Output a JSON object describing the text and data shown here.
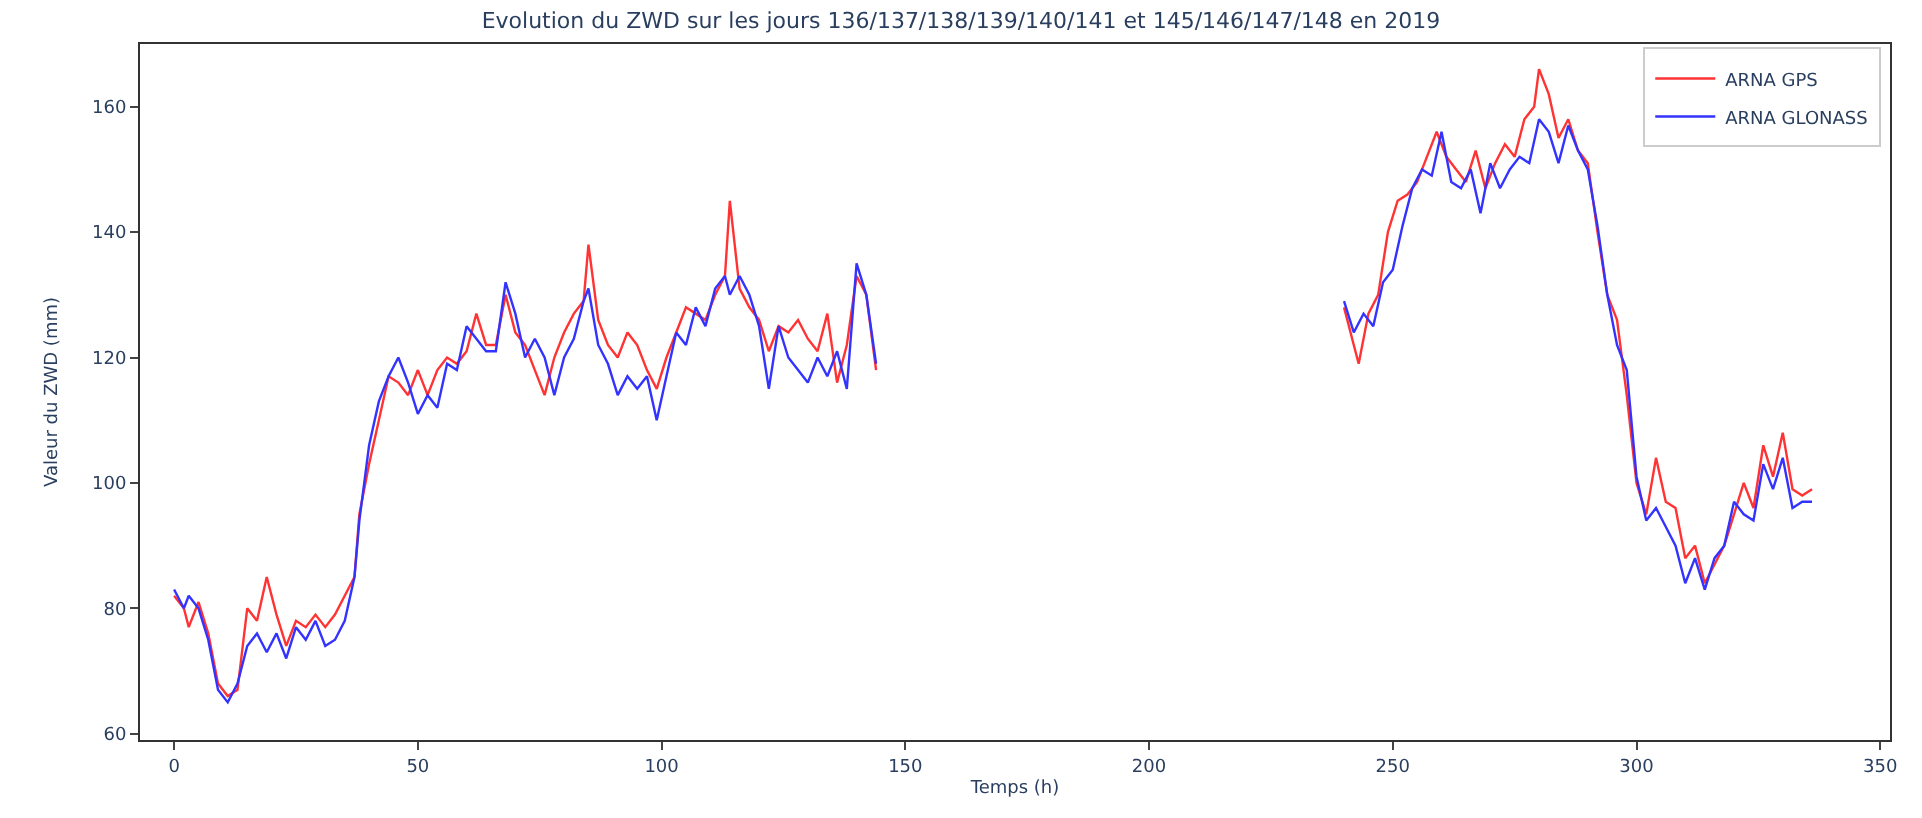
{
  "chart_data": {
    "type": "line",
    "title": "Evolution du ZWD sur les jours 136/137/138/139/140/141 et 145/146/147/148 en 2019",
    "xlabel": "Temps (h)",
    "ylabel": "Valeur du ZWD (mm)",
    "xlim": [
      -7,
      352
    ],
    "xticks": [
      0,
      50,
      100,
      150,
      200,
      250,
      300,
      350
    ],
    "ylim": [
      59,
      170
    ],
    "yticks": [
      60,
      80,
      100,
      120,
      140,
      160
    ],
    "legend": "top right",
    "marker": "none",
    "line_style": "solid",
    "series": [
      {
        "name": "ARNA GPS",
        "color": "#ff3333",
        "x": [
          0,
          2,
          3,
          5,
          7,
          9,
          11,
          13,
          15,
          17,
          19,
          21,
          23,
          25,
          27,
          29,
          31,
          33,
          35,
          37,
          38,
          40,
          42,
          44,
          46,
          48,
          50,
          52,
          54,
          56,
          58,
          60,
          62,
          64,
          66,
          68,
          70,
          72,
          74,
          76,
          78,
          80,
          82,
          84,
          85,
          87,
          89,
          91,
          93,
          95,
          97,
          99,
          101,
          103,
          105,
          107,
          109,
          111,
          113,
          114,
          116,
          118,
          120,
          122,
          124,
          126,
          128,
          130,
          132,
          134,
          136,
          138,
          140,
          142,
          144,
          192,
          240,
          242,
          243,
          245,
          247,
          249,
          251,
          253,
          255,
          257,
          259,
          261,
          263,
          265,
          267,
          269,
          271,
          273,
          275,
          277,
          279,
          280,
          282,
          284,
          286,
          288,
          290,
          292,
          294,
          296,
          298,
          300,
          302,
          304,
          306,
          308,
          310,
          312,
          314,
          316,
          318,
          320,
          322,
          324,
          326,
          328,
          330,
          332,
          334,
          336
        ],
        "values": [
          82,
          80,
          77,
          81,
          76,
          68,
          66,
          67,
          80,
          78,
          85,
          79,
          74,
          78,
          77,
          79,
          77,
          79,
          82,
          85,
          95,
          103,
          110,
          117,
          116,
          114,
          118,
          114,
          118,
          120,
          119,
          121,
          127,
          122,
          122,
          130,
          124,
          122,
          118,
          114,
          120,
          124,
          127,
          129,
          138,
          126,
          122,
          120,
          124,
          122,
          118,
          115,
          120,
          124,
          128,
          127,
          126,
          130,
          133,
          145,
          131,
          128,
          126,
          121,
          125,
          124,
          126,
          123,
          121,
          127,
          116,
          122,
          133,
          130,
          118,
          null,
          128,
          122,
          119,
          127,
          130,
          140,
          145,
          146,
          148,
          152,
          156,
          152,
          150,
          148,
          153,
          147,
          151,
          154,
          152,
          158,
          160,
          166,
          162,
          155,
          158,
          153,
          151,
          140,
          130,
          126,
          114,
          100,
          95,
          104,
          97,
          96,
          88,
          90,
          84,
          87,
          90,
          95,
          100,
          96,
          106,
          101,
          108,
          99,
          98,
          99
        ]
      },
      {
        "name": "ARNA GLONASS",
        "color": "#3333ff",
        "x": [
          0,
          2,
          3,
          5,
          7,
          9,
          11,
          13,
          15,
          17,
          19,
          21,
          23,
          25,
          27,
          29,
          31,
          33,
          35,
          37,
          38,
          40,
          42,
          44,
          46,
          48,
          50,
          52,
          54,
          56,
          58,
          60,
          62,
          64,
          66,
          68,
          70,
          72,
          74,
          76,
          78,
          80,
          82,
          84,
          85,
          87,
          89,
          91,
          93,
          95,
          97,
          99,
          101,
          103,
          105,
          107,
          109,
          111,
          113,
          114,
          116,
          118,
          120,
          122,
          124,
          126,
          128,
          130,
          132,
          134,
          136,
          138,
          140,
          142,
          144,
          192,
          240,
          242,
          244,
          246,
          248,
          250,
          252,
          254,
          256,
          258,
          260,
          262,
          264,
          266,
          268,
          270,
          272,
          274,
          276,
          278,
          280,
          282,
          284,
          286,
          288,
          290,
          292,
          294,
          296,
          298,
          300,
          302,
          304,
          306,
          308,
          310,
          312,
          314,
          316,
          318,
          320,
          322,
          324,
          326,
          328,
          330,
          332,
          334,
          336
        ],
        "values": [
          83,
          80,
          82,
          80,
          75,
          67,
          65,
          68,
          74,
          76,
          73,
          76,
          72,
          77,
          75,
          78,
          74,
          75,
          78,
          85,
          94,
          106,
          113,
          117,
          120,
          116,
          111,
          114,
          112,
          119,
          118,
          125,
          123,
          121,
          121,
          132,
          127,
          120,
          123,
          120,
          114,
          120,
          123,
          129,
          131,
          122,
          119,
          114,
          117,
          115,
          117,
          110,
          117,
          124,
          122,
          128,
          125,
          131,
          133,
          130,
          133,
          130,
          125,
          115,
          125,
          120,
          118,
          116,
          120,
          117,
          121,
          115,
          135,
          130,
          119,
          null,
          129,
          124,
          127,
          125,
          132,
          134,
          141,
          147,
          150,
          149,
          156,
          148,
          147,
          150,
          143,
          151,
          147,
          150,
          152,
          151,
          158,
          156,
          151,
          157,
          153,
          150,
          141,
          130,
          122,
          118,
          101,
          94,
          96,
          93,
          90,
          84,
          88,
          83,
          88,
          90,
          97,
          95,
          94,
          103,
          99,
          104,
          96,
          97,
          97
        ]
      }
    ]
  }
}
